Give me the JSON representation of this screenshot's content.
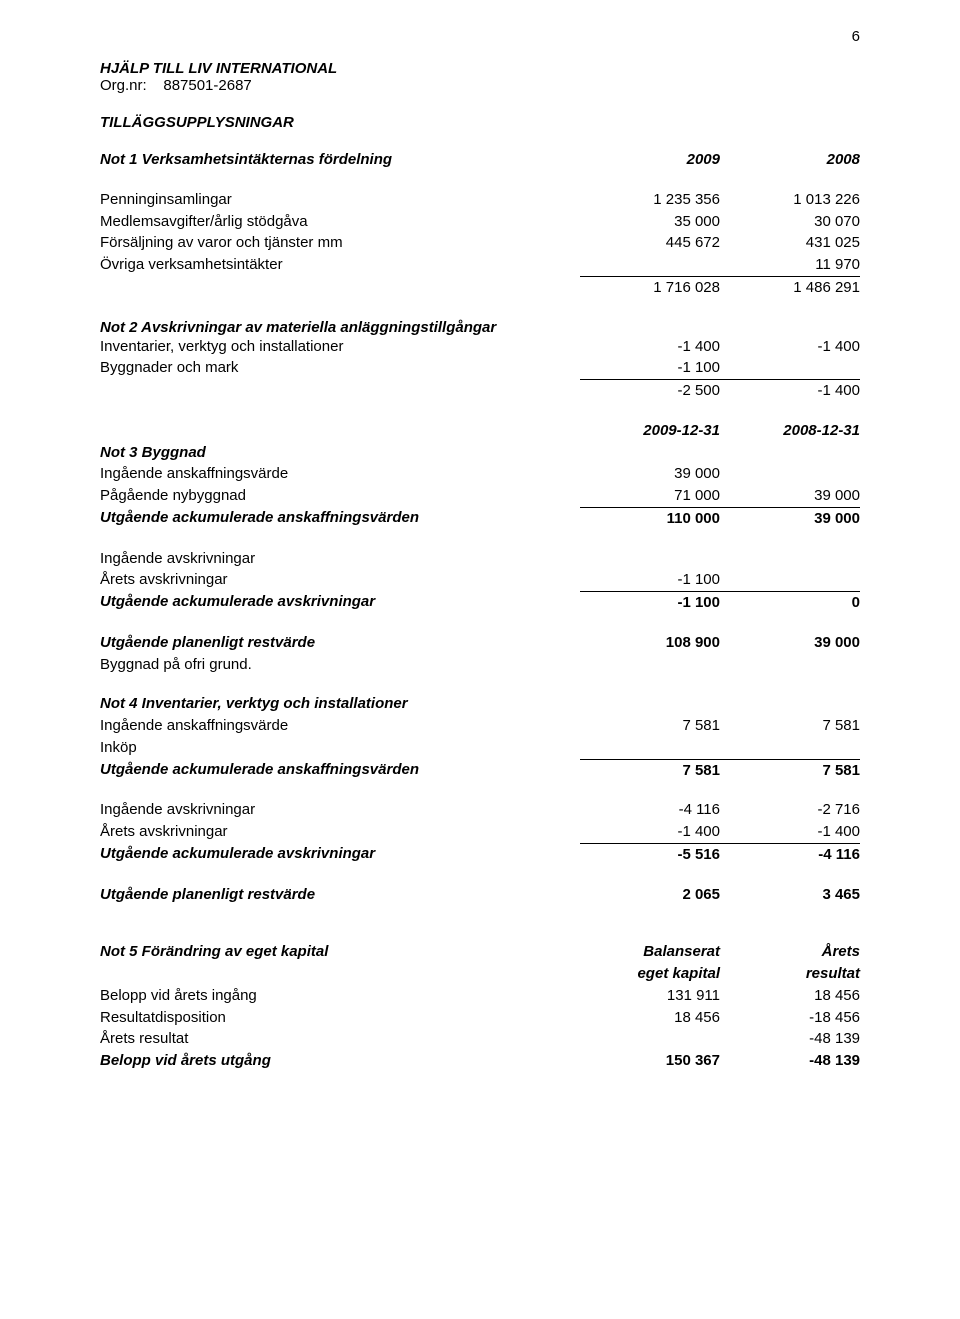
{
  "page_number": "6",
  "org_title": "HJÄLP TILL LIV INTERNATIONAL",
  "org_line": "Org.nr:    887501-2687",
  "main_heading": "TILLÄGGSUPPLYSNINGAR",
  "not1": {
    "heading": "Not 1 Verksamhetsintäkternas fördelning",
    "year1": "2009",
    "year2": "2008",
    "rows": [
      {
        "label": "Penninginsamlingar",
        "c1": "1 235 356",
        "c2": "1 013 226"
      },
      {
        "label": "Medlemsavgifter/årlig stödgåva",
        "c1": "35 000",
        "c2": "30 070"
      },
      {
        "label": "Försäljning av varor och tjänster mm",
        "c1": "445 672",
        "c2": "431 025"
      },
      {
        "label": "Övriga verksamhetsintäkter",
        "c1": "",
        "c2": "11 970"
      }
    ],
    "total": {
      "c1": "1 716 028",
      "c2": "1 486 291"
    }
  },
  "not2": {
    "heading": "Not 2 Avskrivningar av materiella anläggningstillgångar",
    "rows": [
      {
        "label": "Inventarier, verktyg och installationer",
        "c1": "-1 400",
        "c2": "-1 400"
      },
      {
        "label": "Byggnader och mark",
        "c1": "-1 100",
        "c2": ""
      }
    ],
    "total": {
      "c1": "-2 500",
      "c2": "-1 400"
    }
  },
  "not3": {
    "date1": "2009-12-31",
    "date2": "2008-12-31",
    "heading": "Not 3 Byggnad",
    "r1": {
      "label": "Ingående anskaffningsvärde",
      "c1": "39 000",
      "c2": ""
    },
    "r2": {
      "label": "Pågående nybyggnad",
      "c1": "71 000",
      "c2": "39 000"
    },
    "r3": {
      "label": "Utgående ackumulerade anskaffningsvärden",
      "c1": "110 000",
      "c2": "39 000"
    },
    "r4": {
      "label": "Ingående avskrivningar",
      "c1": "",
      "c2": ""
    },
    "r5": {
      "label": "Årets avskrivningar",
      "c1": "-1 100",
      "c2": ""
    },
    "r6": {
      "label": "Utgående ackumulerade avskrivningar",
      "c1": "-1 100",
      "c2": "0"
    },
    "r7": {
      "label": "Utgående planenligt restvärde",
      "c1": "108 900",
      "c2": "39 000"
    },
    "r8": {
      "label": "Byggnad på ofri grund.",
      "c1": "",
      "c2": ""
    }
  },
  "not4": {
    "heading": "Not 4 Inventarier, verktyg och installationer",
    "r1": {
      "label": "Ingående anskaffningsvärde",
      "c1": "7 581",
      "c2": "7 581"
    },
    "r2": {
      "label": "Inköp",
      "c1": "",
      "c2": ""
    },
    "r3": {
      "label": "Utgående ackumulerade anskaffningsvärden",
      "c1": "7 581",
      "c2": "7 581"
    },
    "r4": {
      "label": "Ingående avskrivningar",
      "c1": "-4 116",
      "c2": "-2 716"
    },
    "r5": {
      "label": "Årets avskrivningar",
      "c1": "-1 400",
      "c2": "-1 400"
    },
    "r6": {
      "label": "Utgående ackumulerade avskrivningar",
      "c1": "-5 516",
      "c2": "-4 116"
    },
    "r7": {
      "label": "Utgående planenligt restvärde",
      "c1": "2 065",
      "c2": "3 465"
    }
  },
  "not5": {
    "heading": "Not 5 Förändring av eget kapital",
    "h1": "Balanserat",
    "h2": "Årets",
    "sh1": "eget kapital",
    "sh2": "resultat",
    "r1": {
      "label": "Belopp vid årets ingång",
      "c1": "131 911",
      "c2": "18 456"
    },
    "r2": {
      "label": "Resultatdisposition",
      "c1": "18 456",
      "c2": "-18 456"
    },
    "r3": {
      "label": "Årets resultat",
      "c1": "",
      "c2": "-48 139"
    },
    "r4": {
      "label": "Belopp vid årets utgång",
      "c1": "150 367",
      "c2": "-48 139"
    }
  }
}
